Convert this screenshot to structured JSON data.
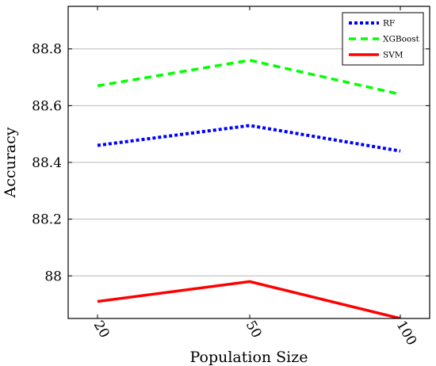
{
  "chart_data": {
    "type": "line",
    "title": "",
    "xlabel": "Population Size",
    "ylabel": "Accuracy",
    "x": [
      20,
      50,
      100
    ],
    "x_tick_labels": [
      "20",
      "50",
      "100"
    ],
    "y_ticks": [
      88,
      88.2,
      88.4,
      88.6,
      88.8
    ],
    "y_tick_labels": [
      "88",
      "88.2",
      "88.4",
      "88.6",
      "88.8"
    ],
    "ylim": [
      87.85,
      88.95
    ],
    "grid": "horizontal",
    "legend_position": "top-right",
    "series": [
      {
        "name": "RF",
        "values": [
          88.46,
          88.53,
          88.44
        ],
        "color": "#0000ff",
        "style": "dotted"
      },
      {
        "name": "XGBoost",
        "values": [
          88.67,
          88.76,
          88.64
        ],
        "color": "#00ff00",
        "style": "dashed"
      },
      {
        "name": "SVM",
        "values": [
          87.91,
          87.98,
          87.85
        ],
        "color": "#ff0000",
        "style": "solid"
      }
    ]
  }
}
